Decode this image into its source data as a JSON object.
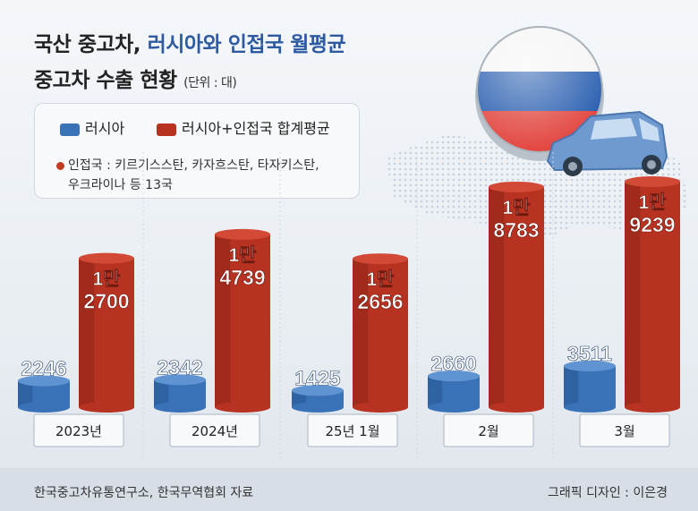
{
  "title": {
    "line1_plain": "국산 중고차, ",
    "line1_accent": "러시아와 인접국 월평균",
    "line2": "중고차 수출 현황",
    "unit": "(단위 : 대)"
  },
  "legend": {
    "series1": "러시아",
    "series2": "러시아+인접국 합계평균",
    "note_line1": "인접국 : 키르기스스탄, 카자흐스탄, 타자키스탄,",
    "note_line2": "우크라이나 등 13국"
  },
  "colors": {
    "russia": "#3a72b8",
    "combined": "#b83222",
    "accent": "#2d5aa0"
  },
  "chart_data": {
    "type": "bar",
    "categories": [
      "2023년",
      "2024년",
      "25년 1월",
      "2월",
      "3월"
    ],
    "series": [
      {
        "name": "러시아",
        "values": [
          2246,
          2342,
          1425,
          2660,
          3511
        ],
        "labels": [
          [
            "2246"
          ],
          [
            "2342"
          ],
          [
            "1425"
          ],
          [
            "2660"
          ],
          [
            "3511"
          ]
        ]
      },
      {
        "name": "러시아+인접국 합계평균",
        "values": [
          12700,
          14739,
          12656,
          18783,
          19239
        ],
        "labels": [
          [
            "1만",
            "2700"
          ],
          [
            "1만",
            "4739"
          ],
          [
            "1만",
            "2656"
          ],
          [
            "1만",
            "8783"
          ],
          [
            "1만",
            "9239"
          ]
        ]
      }
    ]
  },
  "source": "한국중고차유통연구소, 한국무역협회 자료",
  "credit": "그래픽 디자인 : 이은경"
}
